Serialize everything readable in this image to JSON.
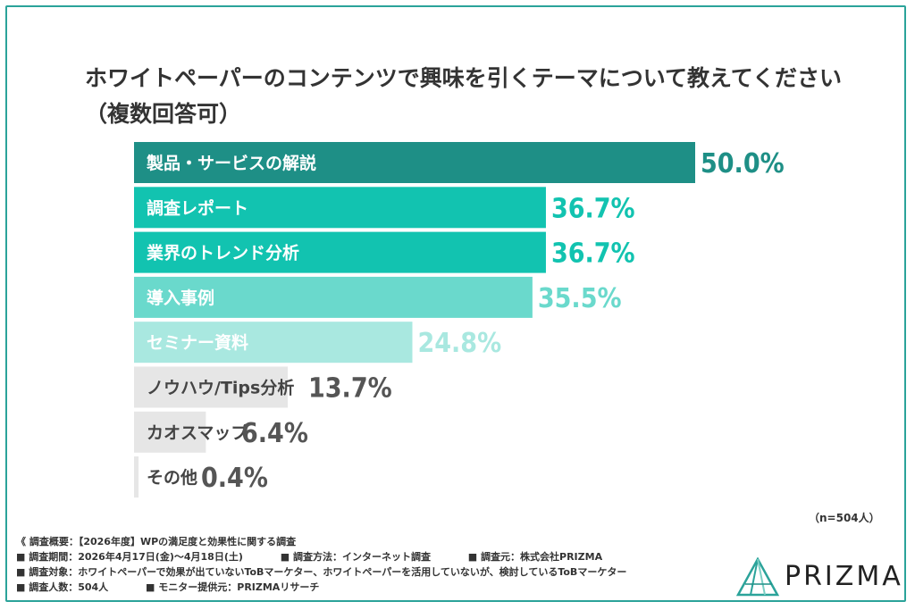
{
  "title": "ホワイトペーパーのコンテンツで興味を引くテーマについて教えてください（複数回答可）",
  "sample_size": "（n=504人）",
  "chart_data": {
    "type": "bar",
    "orientation": "horizontal",
    "categories": [
      "製品・サービスの解説",
      "調査レポート",
      "業界のトレンド分析",
      "導入事例",
      "セミナー資料",
      "ノウハウ/Tips分析",
      "カオスマップ",
      "その他"
    ],
    "values": [
      50.0,
      36.7,
      36.7,
      35.5,
      24.8,
      13.7,
      6.4,
      0.4
    ],
    "value_labels": [
      "50.0%",
      "36.7%",
      "36.7%",
      "35.5%",
      "24.8%",
      "13.7%",
      "6.4%",
      "0.4%"
    ],
    "bar_colors": [
      "#1e8f86",
      "#12c3b0",
      "#12c3b0",
      "#6ad9cc",
      "#a9e8e0",
      "#e6e6e6",
      "#e6e6e6",
      "#e6e6e6"
    ],
    "label_colors": [
      "#1e8f86",
      "#12c3b0",
      "#12c3b0",
      "#6ad9cc",
      "#a9e8e0",
      "#555555",
      "#555555",
      "#555555"
    ],
    "xlim": [
      0,
      50
    ]
  },
  "notes": {
    "line1": "《 調査概要：【2026年度】WPの満足度と効果性に関する調査",
    "period": "■ 調査期間：2026年4月17日(金)〜4月18日(土)",
    "method": "■ 調査方法：インターネット調査",
    "source": "■ 調査元：株式会社PRIZMA",
    "target": "■ 調査対象：ホワイトペーパーで効果が出ていないToBマーケター、ホワイトペーパーを活用していないが、検討しているToBマーケター",
    "count": "■ 調査人数：504人",
    "provider": "■ モニター提供元：PRIZMAリサーチ"
  },
  "brand": {
    "name": "PRIZMA",
    "logo_icon": "prism-triangle-icon",
    "logo_color": "#2ba39a"
  }
}
